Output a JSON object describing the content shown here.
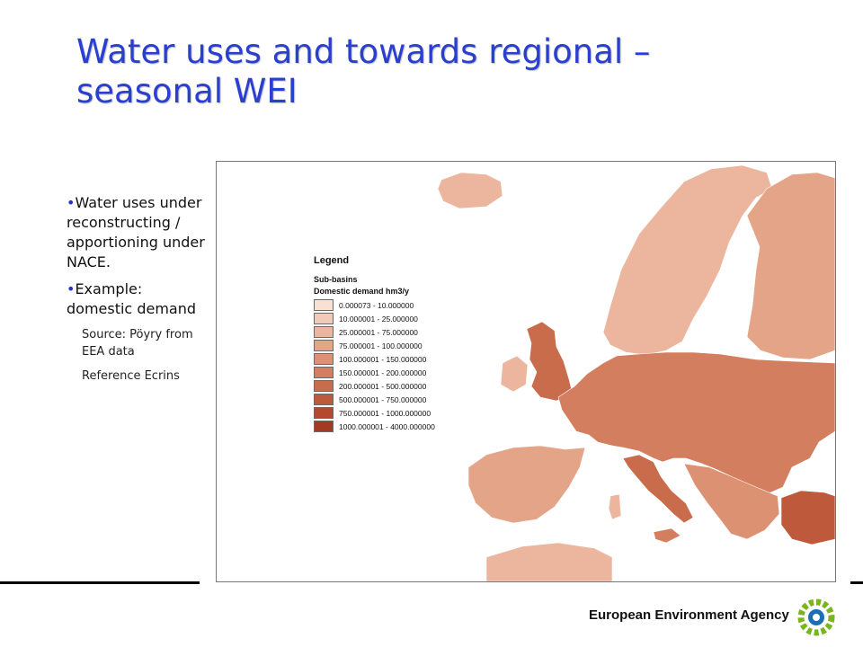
{
  "slide": {
    "title_line1": "Water uses and towards regional –",
    "title_line2": "seasonal WEI",
    "bullets": [
      "Water uses under reconstructing / apportioning under NACE.",
      "Example: domestic demand"
    ],
    "sub_bullets": [
      "Source: Pöyry from EEA data",
      "Reference Ecrins"
    ]
  },
  "map": {
    "legend": {
      "title": "Legend",
      "layer": "Sub-basins",
      "field": "Domestic demand hm3/y",
      "classes": [
        {
          "label": "0.000073 - 10.000000",
          "color": "#f8e0d2"
        },
        {
          "label": "10.000001 - 25.000000",
          "color": "#f2cbb8"
        },
        {
          "label": "25.000001 - 75.000000",
          "color": "#ebb69d"
        },
        {
          "label": "75.000001 - 100.000000",
          "color": "#e4a487"
        },
        {
          "label": "100.000001 - 150.000000",
          "color": "#dc9172"
        },
        {
          "label": "150.000001 - 200.000000",
          "color": "#d37f5f"
        },
        {
          "label": "200.000001 - 500.000000",
          "color": "#c96c4c"
        },
        {
          "label": "500.000001 - 750.000000",
          "color": "#be5a3b"
        },
        {
          "label": "750.000001 - 1000.000000",
          "color": "#b3492e"
        },
        {
          "label": "1000.000001 - 4000.000000",
          "color": "#a53a22"
        }
      ]
    }
  },
  "footer": {
    "agency": "European Environment Agency"
  },
  "colors": {
    "title": "#2a3fd0",
    "logo_green": "#7ab51d",
    "logo_blue": "#1c6fb5"
  }
}
